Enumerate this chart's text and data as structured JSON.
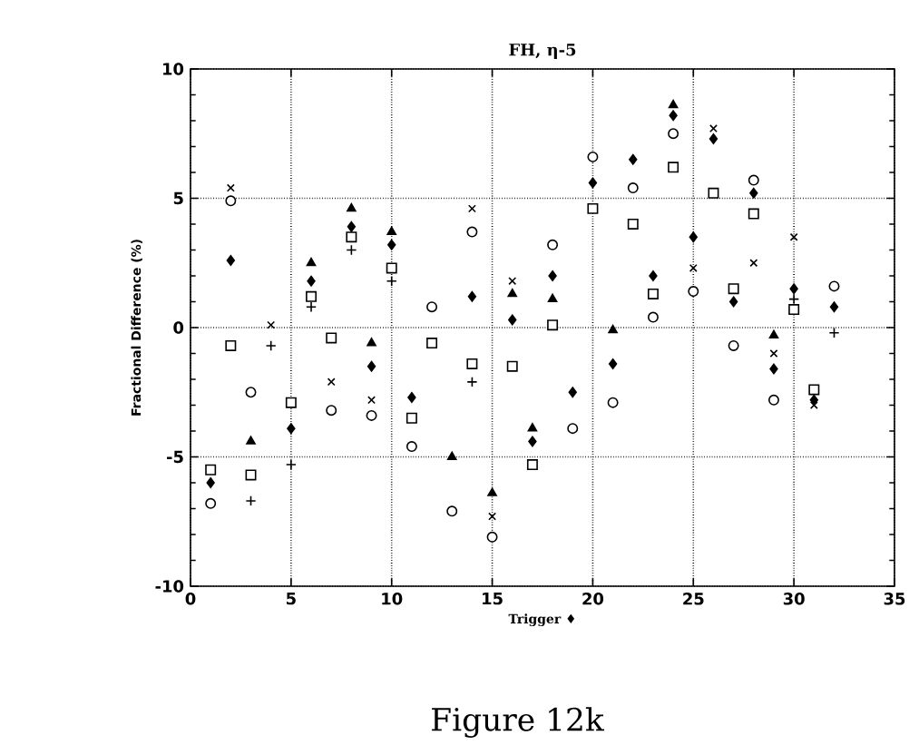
{
  "chart_data": {
    "type": "scatter",
    "title": "FH, η-5",
    "xlabel": "Trigger ♦",
    "ylabel": "Fractional  Difference  (%)",
    "annotations": [
      "Figure 12k"
    ],
    "xlim": [
      0,
      35
    ],
    "xticks": [
      0,
      5,
      10,
      15,
      20,
      25,
      30,
      35
    ],
    "ylim": [
      -10,
      10
    ],
    "yticks": [
      -10,
      -5,
      0,
      5,
      10
    ],
    "grid": true,
    "series": [
      {
        "color": "#000000",
        "marker": "circle",
        "x": [
          1,
          2,
          3,
          7,
          9,
          11,
          12,
          13,
          14,
          15,
          18,
          19,
          20,
          21,
          22,
          23,
          24,
          25,
          27,
          28,
          29,
          32
        ],
        "values": [
          -6.8,
          4.9,
          -2.5,
          -3.2,
          -3.4,
          -4.6,
          0.8,
          -7.1,
          3.7,
          -8.1,
          3.2,
          -3.9,
          6.6,
          -2.9,
          5.4,
          0.4,
          7.5,
          1.4,
          -0.7,
          5.7,
          -2.8,
          1.6
        ]
      },
      {
        "color": "#000000",
        "marker": "diamond",
        "x": [
          1,
          2,
          5,
          6,
          8,
          9,
          10,
          11,
          14,
          16,
          17,
          18,
          19,
          20,
          21,
          22,
          23,
          24,
          25,
          26,
          27,
          28,
          29,
          30,
          31,
          32
        ],
        "values": [
          -6,
          2.6,
          -3.9,
          1.8,
          3.9,
          -1.5,
          3.2,
          -2.7,
          1.2,
          0.3,
          -4.4,
          2,
          -2.5,
          5.6,
          -1.4,
          6.5,
          2,
          8.2,
          3.5,
          7.3,
          1.0,
          5.2,
          -1.6,
          1.5,
          -2.8,
          0.8
        ]
      },
      {
        "color": "#000000",
        "marker": "triangle",
        "x": [
          3,
          6,
          8,
          9,
          10,
          13,
          15,
          16,
          17,
          18,
          21,
          24,
          29
        ],
        "values": [
          -4.4,
          2.5,
          4.6,
          -0.6,
          3.7,
          -5,
          -6.4,
          1.3,
          -3.9,
          1.1,
          -0.1,
          8.6,
          -0.3
        ]
      },
      {
        "color": "#000000",
        "marker": "square",
        "x": [
          1,
          2,
          3,
          5,
          6,
          7,
          8,
          10,
          11,
          12,
          14,
          16,
          17,
          18,
          20,
          22,
          23,
          24,
          26,
          27,
          28,
          30,
          31
        ],
        "values": [
          -5.5,
          -0.7,
          -5.7,
          -2.9,
          1.2,
          -0.4,
          3.5,
          2.3,
          -3.5,
          -0.6,
          -1.4,
          -1.5,
          -5.3,
          0.1,
          4.6,
          4.0,
          1.3,
          6.2,
          5.2,
          1.5,
          4.4,
          0.7,
          -2.4
        ]
      },
      {
        "color": "#000000",
        "marker": "cross",
        "x": [
          2,
          4,
          7,
          9,
          14,
          15,
          16,
          25,
          26,
          28,
          29,
          30,
          31
        ],
        "values": [
          5.4,
          0.1,
          -2.1,
          -2.8,
          4.6,
          -7.3,
          1.8,
          2.3,
          7.7,
          2.5,
          -1.0,
          3.5,
          -3.0
        ]
      },
      {
        "color": "#000000",
        "marker": "plus",
        "x": [
          3,
          4,
          5,
          6,
          8,
          10,
          14,
          30,
          32
        ],
        "values": [
          -6.7,
          -0.7,
          -5.3,
          0.8,
          3.0,
          1.8,
          -2.1,
          1.1,
          -0.2
        ]
      }
    ]
  }
}
